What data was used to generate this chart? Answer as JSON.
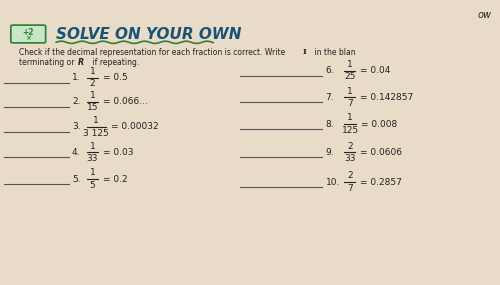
{
  "bg_color": "#e8dcc8",
  "title": "SOLVE ON YOUR OWN",
  "title_color": "#1a5276",
  "title_fontsize": 11,
  "instruction1": "Check if the decimal representation for each fraction is correct. Write ",
  "instruction_I": "I",
  "instruction2": " in the blan",
  "instruction3": "terminating or ",
  "instruction_R": "R",
  "instruction4": " if repeating.",
  "ow_text": "ow",
  "left_items": [
    {
      "num": "1",
      "frac_num": "1",
      "frac_den": "2",
      "decimal": "= 0.5"
    },
    {
      "num": "2",
      "frac_num": "1",
      "frac_den": "15",
      "decimal": "= 0.066..."
    },
    {
      "num": "3",
      "frac_num": "1",
      "frac_den": "3 125",
      "decimal": "= 0.00032"
    },
    {
      "num": "4",
      "frac_num": "1",
      "frac_den": "33",
      "decimal": "= 0.03"
    },
    {
      "num": "5",
      "frac_num": "1",
      "frac_den": "5",
      "decimal": "= 0.2"
    }
  ],
  "right_items": [
    {
      "num": "6",
      "frac_num": "1",
      "frac_den": "25",
      "decimal": "= 0.04"
    },
    {
      "num": "7",
      "frac_num": "1",
      "frac_den": "7",
      "decimal": "= 0.142857"
    },
    {
      "num": "8",
      "frac_num": "1",
      "frac_den": "125",
      "decimal": "= 0.008"
    },
    {
      "num": "9",
      "frac_num": "2",
      "frac_den": "33",
      "decimal": "= 0.0606"
    },
    {
      "num": "10",
      "frac_num": "2",
      "frac_den": "7",
      "decimal": "= 0.2857"
    }
  ],
  "line_color": "#555555",
  "text_color": "#222222",
  "green_color": "#2e7d32",
  "wavy_color": "#1a6b1a"
}
